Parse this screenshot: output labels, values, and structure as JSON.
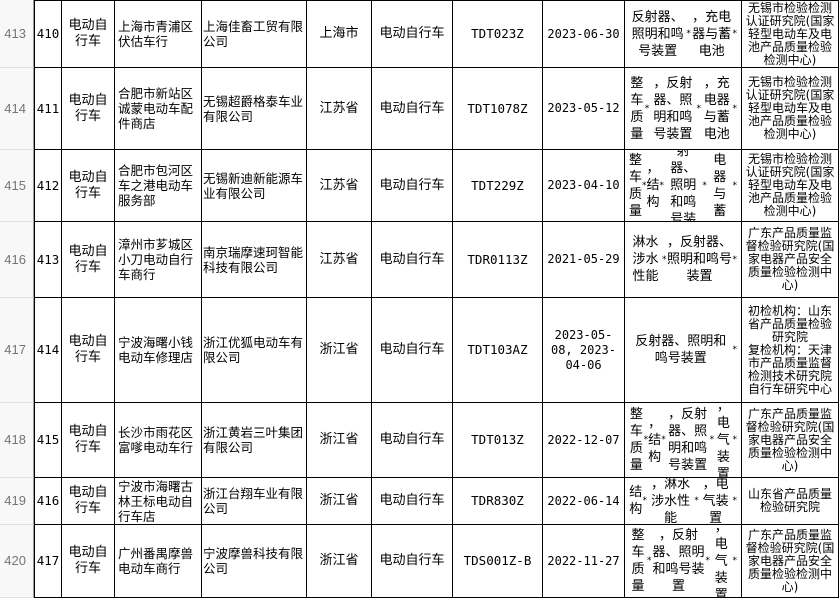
{
  "colors": {
    "table_border": "#000000",
    "cell_bg": "#ffffff",
    "text": "#000000",
    "gutter_bg": "#f8f8f8",
    "gutter_text": "#757575",
    "gutter_border": "#9b9b9b"
  },
  "table": {
    "rows": [
      {
        "gutter": "413",
        "seq": "410",
        "category": "电动自行车",
        "store": "上海市青浦区伏估车行",
        "manufacturer": "上海佳畜工贸有限公司",
        "province": "上海市",
        "product": "电动自行车",
        "model": "TDT023Z",
        "date": "2023-06-30",
        "issues": "反射器、照明和鸣号装置*，充电器与蓄电池*",
        "agency": "无锡市检验检测认证研究院(国家轻型电动车及电池产品质量检验检测中心)"
      },
      {
        "gutter": "414",
        "seq": "411",
        "category": "电动自行车",
        "store": "合肥市新站区诚蒙电动车配件商店",
        "manufacturer": "无锡超爵格泰车业有限公司",
        "province": "江苏省",
        "product": "电动自行车",
        "model": "TDT1078Z",
        "date": "2023-05-12",
        "issues": "整车质量*，反射器、照明和鸣号装置*，充电器与蓄电池*",
        "agency": "无锡市检验检测认证研究院(国家轻型电动车及电池产品质量检验检测中心)"
      },
      {
        "gutter": "415",
        "seq": "412",
        "category": "电动自行车",
        "store": "合肥市包河区车之港电动车服务部",
        "manufacturer": "无锡新迪新能源车业有限公司",
        "province": "江苏省",
        "product": "电动自行车",
        "model": "TDT229Z",
        "date": "2023-04-10",
        "issues": "整车质量*，结构*，反射器、照明和鸣号装置*，充电器与蓄电池*",
        "agency": "无锡市检验检测认证研究院(国家轻型电动车及电池产品质量检验检测中心)"
      },
      {
        "gutter": "416",
        "seq": "413",
        "category": "电动自行车",
        "store": "漳州市芗城区小刀电动自行车商行",
        "manufacturer": "南京瑞摩速珂智能科技有限公司",
        "province": "江苏省",
        "product": "电动自行车",
        "model": "TDR0113Z",
        "date": "2021-05-29",
        "issues": "淋水涉水性能*，反射器、照明和鸣号装置*",
        "agency": "广东产品质量监督检验研究院(国家电器产品安全质量检验检测中心)"
      },
      {
        "gutter": "417",
        "seq": "414",
        "category": "电动自行车",
        "store": "宁波海曙小钱电动车修理店",
        "manufacturer": "浙江优狐电动车有限公司",
        "province": "浙江省",
        "product": "电动自行车",
        "model": "TDT103AZ",
        "date": "2023-05-08, 2023-04-06",
        "issues": "反射器、照明和鸣号装置*",
        "agency": "初检机构：山东省产品质量检验研究院\n复检机构：天津市产品质量监督检测技术研究院自行车研究中心"
      },
      {
        "gutter": "418",
        "seq": "415",
        "category": "电动自行车",
        "store": "长沙市雨花区富嗲电动车行",
        "manufacturer": "浙江黄岩三叶集团有限公司",
        "province": "浙江省",
        "product": "电动自行车",
        "model": "TDT013Z",
        "date": "2022-12-07",
        "issues": "整车质量*，结构*，反射器、照明和鸣号装置*，电气装置*",
        "agency": "广东产品质量监督检验研究院(国家电器产品安全质量检验检测中心)"
      },
      {
        "gutter": "419",
        "seq": "416",
        "category": "电动自行车",
        "store": "宁波市海曙古林王标电动自行车店",
        "manufacturer": "浙江台翔车业有限公司",
        "province": "浙江省",
        "product": "电动自行车",
        "model": "TDR830Z",
        "date": "2022-06-14",
        "issues": "结构*，淋水涉水性能*，电气装置*",
        "agency": "山东省产品质量检验研究院"
      },
      {
        "gutter": "420",
        "seq": "417",
        "category": "电动自行车",
        "store": "广州番禺摩兽电动车商行",
        "manufacturer": "宁波摩兽科技有限公司",
        "province": "浙江省",
        "product": "电动自行车",
        "model": "TDS001Z-B",
        "date": "2022-11-27",
        "issues": "整车质量*，反射器、照明和鸣号装置*，电气装置*",
        "agency": "广东产品质量监督检验研究院(国家电器产品安全质量检验检测中心)"
      }
    ]
  }
}
